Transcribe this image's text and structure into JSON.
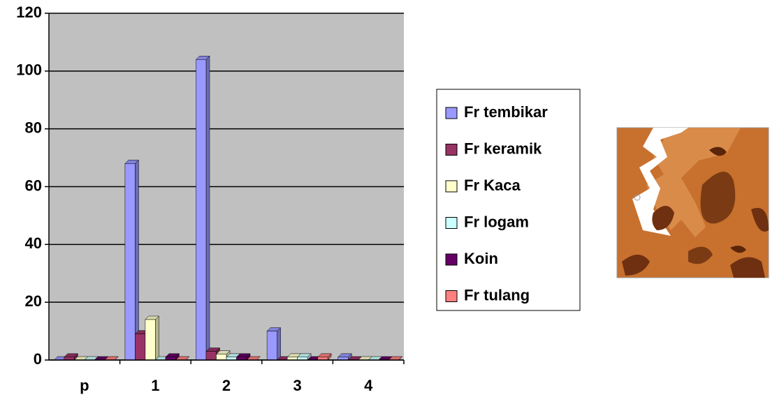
{
  "chart_data": {
    "type": "bar",
    "categories": [
      "p",
      "1",
      "2",
      "3",
      "4"
    ],
    "series": [
      {
        "name": "Fr tembikar",
        "color": "#9999ff",
        "values": [
          0,
          68,
          104,
          10,
          1
        ]
      },
      {
        "name": "Fr keramik",
        "color": "#993366",
        "values": [
          1,
          9,
          3,
          0,
          0
        ]
      },
      {
        "name": "Fr Kaca",
        "color": "#ffffcc",
        "values": [
          0,
          14,
          2,
          1,
          0
        ]
      },
      {
        "name": "Fr logam",
        "color": "#ccffff",
        "values": [
          0,
          0,
          1,
          1,
          0
        ]
      },
      {
        "name": "Koin",
        "color": "#660066",
        "values": [
          0,
          1,
          1,
          0,
          0
        ]
      },
      {
        "name": "Fr tulang",
        "color": "#ff8080",
        "values": [
          0,
          0,
          0,
          1,
          0
        ]
      }
    ],
    "ylim": [
      0,
      120
    ],
    "yticks": [
      0,
      20,
      40,
      60,
      80,
      100,
      120
    ],
    "grid": true
  }
}
